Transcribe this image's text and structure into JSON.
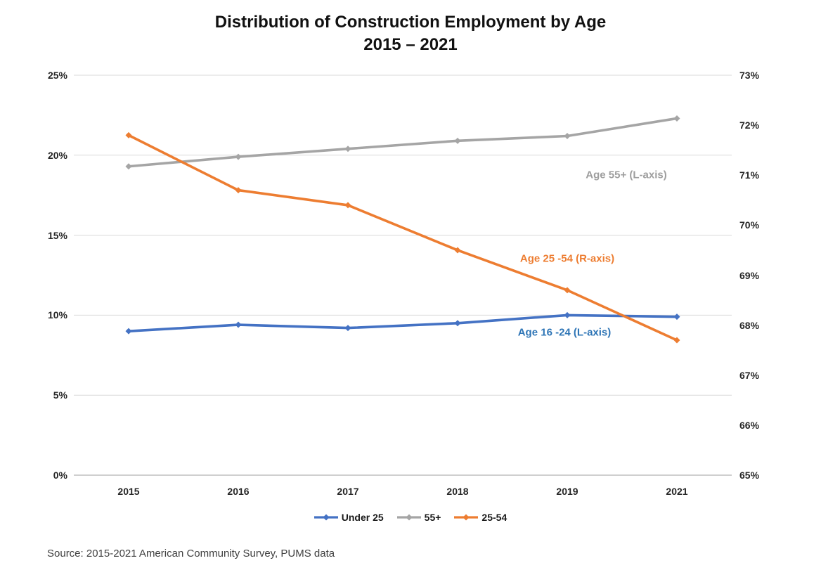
{
  "page": {
    "title_line1": "Distribution of Construction Employment by Age",
    "title_line2": "2015 – 2021",
    "source": "Source: 2015-2021 American Community Survey, PUMS data"
  },
  "chart_data": {
    "type": "line",
    "title": "Distribution of Construction Employment by Age 2015 – 2021",
    "categories": [
      "2015",
      "2016",
      "2017",
      "2018",
      "2019",
      "2021"
    ],
    "series": [
      {
        "name": "Under 25",
        "axis": "left",
        "color": "#4472C4",
        "values": [
          9.0,
          9.4,
          9.2,
          9.5,
          10.0,
          9.9
        ]
      },
      {
        "name": "55+",
        "axis": "left",
        "color": "#A5A5A5",
        "values": [
          19.3,
          19.9,
          20.4,
          20.9,
          21.2,
          22.3
        ]
      },
      {
        "name": "25-54",
        "axis": "right",
        "color": "#ED7D31",
        "values": [
          71.8,
          70.7,
          70.4,
          69.5,
          68.7,
          67.7
        ]
      }
    ],
    "left_axis": {
      "min": 0,
      "max": 25,
      "step": 5,
      "tick_labels": [
        "0%",
        "5%",
        "10%",
        "15%",
        "20%",
        "25%"
      ]
    },
    "right_axis": {
      "min": 65,
      "max": 73,
      "step": 1,
      "tick_labels": [
        "65%",
        "66%",
        "67%",
        "68%",
        "69%",
        "70%",
        "71%",
        "72%",
        "73%"
      ]
    },
    "annotations": [
      {
        "text": "Age 55+ (L-axis)",
        "color": "#9E9E9E",
        "x": 891,
        "y": 249
      },
      {
        "text": "Age 25 -54 (R-axis)",
        "color": "#ED7D31",
        "x": 807,
        "y": 368
      },
      {
        "text": "Age 16 -24 (L-axis)",
        "color": "#2E75B6",
        "x": 803,
        "y": 473
      }
    ],
    "legend": [
      {
        "label": "Under 25",
        "color": "#4472C4"
      },
      {
        "label": "55+",
        "color": "#A5A5A5"
      },
      {
        "label": "25-54",
        "color": "#ED7D31"
      }
    ],
    "grid": "horizontal-major-left-axis",
    "legend_position": "bottom",
    "colors": {
      "gridline": "#D9D9D9",
      "axis_line": "#BFBFBF",
      "tick_text": "#262626"
    }
  }
}
